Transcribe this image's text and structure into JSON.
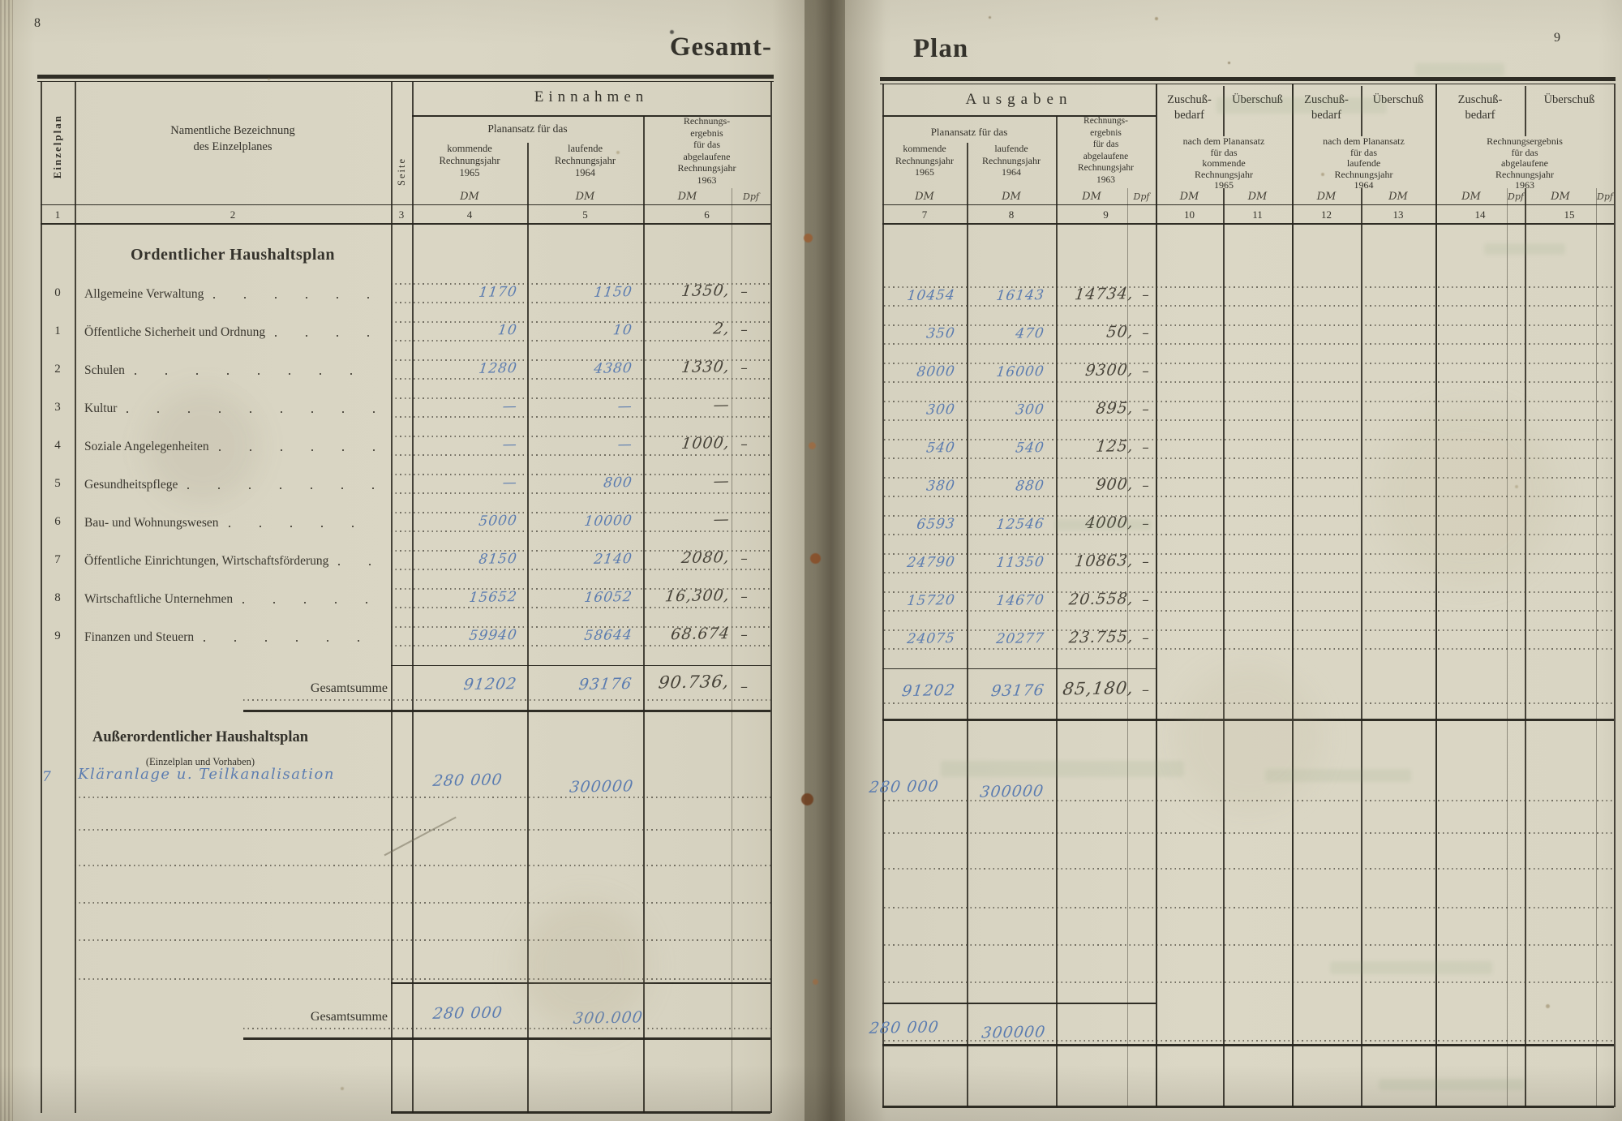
{
  "book": {
    "left_page_number": "8",
    "right_page_number": "9",
    "left_title": "Gesamt-",
    "right_title": "Plan"
  },
  "colors": {
    "paper": "#dad6c4",
    "ink_blue": "#5b7cb0",
    "ink_pencil": "#474339",
    "rule_black": "#262419",
    "foxing_rust": "#9b5c2f"
  },
  "headers": {
    "einzelplan": "Einzelplan",
    "bezeichnung_line1": "Namentliche Bezeichnung",
    "bezeichnung_line2": "des Einzelplanes",
    "seite": "Seite",
    "einnahmen": "Einnahmen",
    "ausgaben": "Ausgaben",
    "planansatz": "Planansatz für das",
    "kommende": [
      "kommende",
      "Rechnungsjahr",
      "1965"
    ],
    "laufende": [
      "laufende",
      "Rechnungsjahr",
      "1964"
    ],
    "ergebnis": [
      "Rechnungs-",
      "ergebnis",
      "für das",
      "abgelaufene",
      "Rechnungsjahr",
      "1963"
    ],
    "zuschuss_line1": "Zuschuß-",
    "zuschuss_line2": "bedarf",
    "ueberschuss": "Überschuß",
    "nach_1965": [
      "nach dem Planansatz",
      "für das",
      "kommende",
      "Rechnungsjahr",
      "1965"
    ],
    "nach_1964": [
      "nach dem Planansatz",
      "für das",
      "laufende",
      "Rechnungsjahr",
      "1964"
    ],
    "ergebnis_1963": [
      "Rechnungsergebnis",
      "für das",
      "abgelaufene",
      "Rechnungsjahr",
      "1963"
    ],
    "dm": "DM",
    "dpf": "Dpf",
    "col_numbers_left": [
      "1",
      "2",
      "3",
      "4",
      "5",
      "6"
    ],
    "col_numbers_right": [
      "7",
      "8",
      "9",
      "10",
      "11",
      "12",
      "13",
      "14",
      "15"
    ]
  },
  "sections": {
    "ordentlich": "Ordentlicher Haushaltsplan",
    "ausserordentlich": "Außerordentlicher Haushaltsplan",
    "ausserordentlich_sub": "(Einzelplan und Vorhaben)",
    "gesamtsumme": "Gesamtsumme"
  },
  "rows": [
    {
      "nr": "0",
      "name": "Allgemeine Verwaltung",
      "e65": "1170",
      "e64": "1150",
      "e63": "1350,",
      "e63p": "–",
      "a65": "10454",
      "a64": "16143",
      "a63": "14734,",
      "a63p": "–"
    },
    {
      "nr": "1",
      "name": "Öffentliche Sicherheit und Ordnung",
      "e65": "10",
      "e64": "10",
      "e63": "2,",
      "e63p": "–",
      "a65": "350",
      "a64": "470",
      "a63": "50,",
      "a63p": "–"
    },
    {
      "nr": "2",
      "name": "Schulen",
      "e65": "1280",
      "e64": "4380",
      "e63": "1330,",
      "e63p": "–",
      "a65": "8000",
      "a64": "16000",
      "a63": "9300,",
      "a63p": "–"
    },
    {
      "nr": "3",
      "name": "Kultur",
      "e65": "—",
      "e64": "—",
      "e63": "—",
      "e63p": "",
      "a65": "300",
      "a64": "300",
      "a63": "895,",
      "a63p": "–"
    },
    {
      "nr": "4",
      "name": "Soziale Angelegenheiten",
      "e65": "—",
      "e64": "—",
      "e63": "1000,",
      "e63p": "–",
      "a65": "540",
      "a64": "540",
      "a63": "125,",
      "a63p": "–"
    },
    {
      "nr": "5",
      "name": "Gesundheitspflege",
      "e65": "—",
      "e64": "800",
      "e63": "—",
      "e63p": "",
      "a65": "380",
      "a64": "880",
      "a63": "900,",
      "a63p": "–"
    },
    {
      "nr": "6",
      "name": "Bau- und Wohnungswesen",
      "e65": "5000",
      "e64": "10000",
      "e63": "—",
      "e63p": "",
      "a65": "6593",
      "a64": "12546",
      "a63": "4000,",
      "a63p": "–"
    },
    {
      "nr": "7",
      "name": "Öffentliche Einrichtungen, Wirtschaftsförderung",
      "e65": "8150",
      "e64": "2140",
      "e63": "2080,",
      "e63p": "–",
      "a65": "24790",
      "a64": "11350",
      "a63": "10863,",
      "a63p": "–"
    },
    {
      "nr": "8",
      "name": "Wirtschaftliche Unternehmen",
      "e65": "15652",
      "e64": "16052",
      "e63": "16,300,",
      "e63p": "–",
      "a65": "15720",
      "a64": "14670",
      "a63": "20.558,",
      "a63p": "–"
    },
    {
      "nr": "9",
      "name": "Finanzen und Steuern",
      "e65": "59940",
      "e64": "58644",
      "e63": "68.674",
      "e63p": "–",
      "a65": "24075",
      "a64": "20277",
      "a63": "23.755,",
      "a63p": "–"
    }
  ],
  "totals_ordentlich": {
    "label": "Gesamtsumme",
    "e65": "91202",
    "e64": "93176",
    "e63": "90.736,",
    "e63p": "–",
    "a65": "91202",
    "a64": "93176",
    "a63": "85,180,",
    "a63p": "–"
  },
  "extraordinary_row": {
    "nr": "7",
    "name": "Kläranlage u. Teilkanalisation",
    "e65": "280 000",
    "e64": "300000",
    "a65": "280 000",
    "a64": "300000"
  },
  "totals_ausserordentlich": {
    "label": "Gesamtsumme",
    "e65": "280 000",
    "e64": "300.000",
    "a65": "280 000",
    "a64": "300000"
  }
}
